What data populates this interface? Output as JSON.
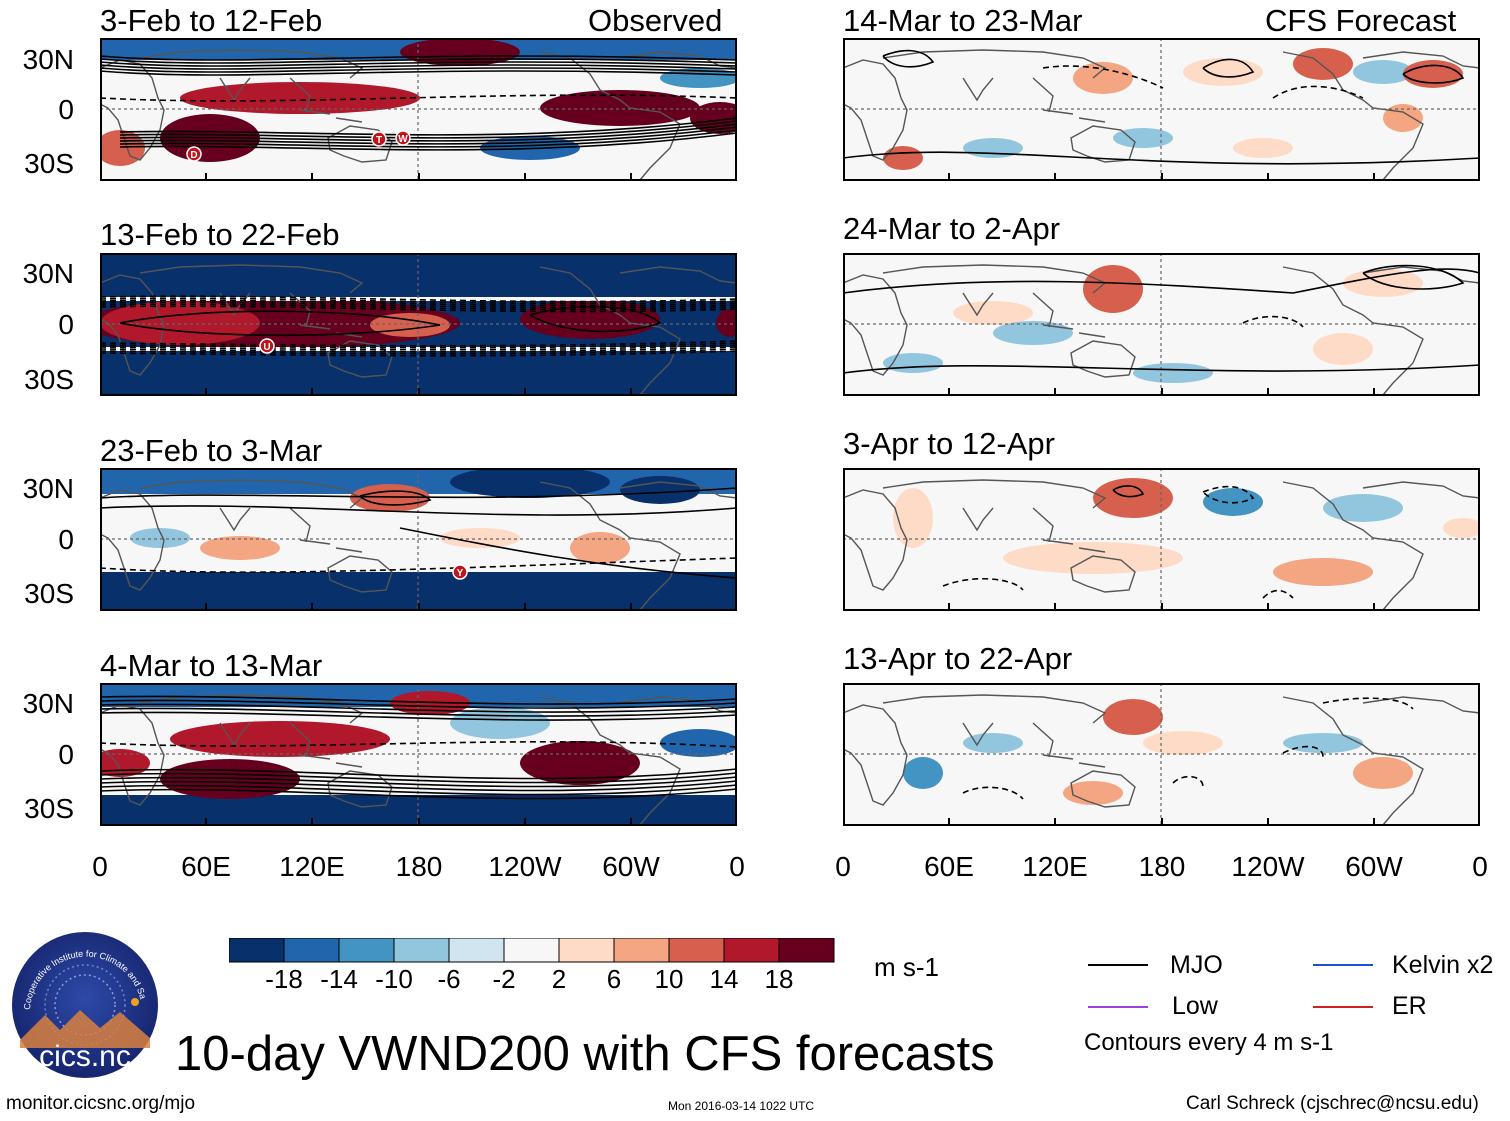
{
  "header": {
    "left": "Observed",
    "right": "CFS Forecast"
  },
  "panels": {
    "observed": [
      {
        "title": "3-Feb to 12-Feb",
        "markers": [
          "D",
          "T",
          "W"
        ]
      },
      {
        "title": "13-Feb to 22-Feb",
        "markers": [
          "U"
        ]
      },
      {
        "title": "23-Feb to 3-Mar",
        "markers": [
          "Y"
        ]
      },
      {
        "title": "4-Mar to 13-Mar",
        "markers": []
      }
    ],
    "forecast": [
      {
        "title": "14-Mar to 23-Mar"
      },
      {
        "title": "24-Mar to 2-Apr"
      },
      {
        "title": "3-Apr to 12-Apr"
      },
      {
        "title": "13-Apr to 22-Apr"
      }
    ]
  },
  "y_ticks": [
    "30N",
    "0",
    "30S"
  ],
  "x_ticks": [
    "0",
    "60E",
    "120E",
    "180",
    "120W",
    "60W",
    "0"
  ],
  "colorbar": {
    "colors": [
      "#08306b",
      "#2166ac",
      "#4393c3",
      "#92c5de",
      "#d1e5f0",
      "#f7f7f7",
      "#fddbc7",
      "#f4a582",
      "#d6604d",
      "#b2182b",
      "#67001f"
    ],
    "labels": [
      "-18",
      "-14",
      "-10",
      "-6",
      "-2",
      "2",
      "6",
      "10",
      "14",
      "18"
    ],
    "units": "m s-1"
  },
  "legend": {
    "items": [
      {
        "label": "MJO",
        "color": "#000000"
      },
      {
        "label": "Kelvin x2",
        "color": "#1f4fd8"
      },
      {
        "label": "Low",
        "color": "#a040e0"
      },
      {
        "label": "ER",
        "color": "#d02020"
      }
    ],
    "note": "Contours every 4 m s-1"
  },
  "logo": {
    "text": "cics.nc",
    "ring_text": "Cooperative Institute for Climate and Satellites"
  },
  "main_title": "10-day VWND200 with CFS forecasts",
  "footer": {
    "url": "monitor.cicsnc.org/mjo",
    "timestamp": "Mon 2016-03-14 1022 UTC",
    "credit": "Carl Schreck (cjschrec@ncsu.edu)"
  }
}
